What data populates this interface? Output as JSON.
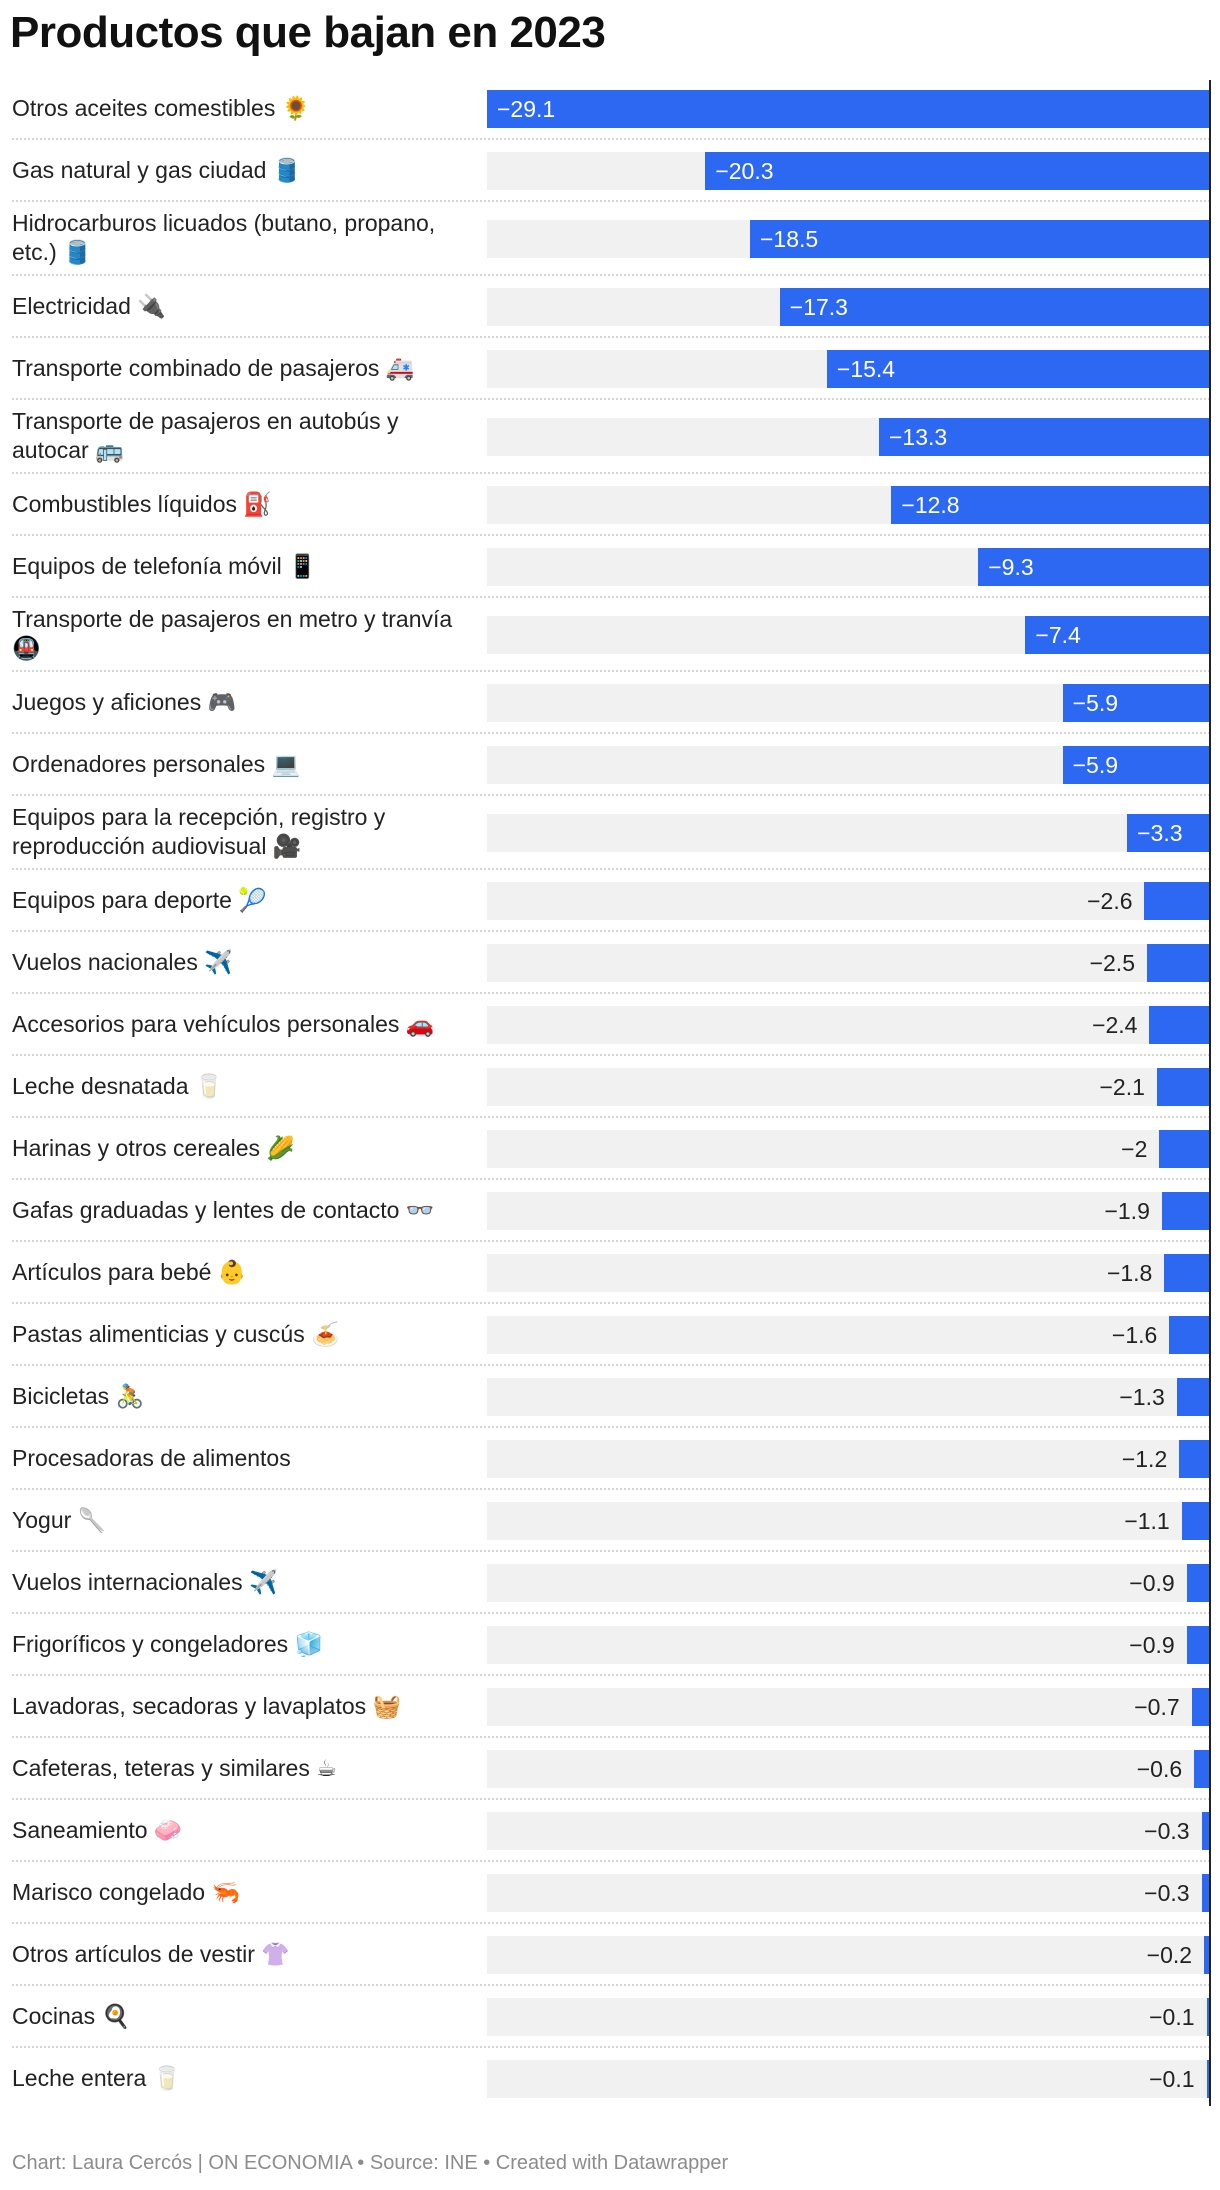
{
  "title": "Productos que bajan en 2023",
  "footer": "Chart: Laura Cercós | ON ECONOMIA • Source: INE • Created with Datawrapper",
  "colors": {
    "bar": "#2c68f2",
    "track": "#f1f1f1",
    "axis": "#222222"
  },
  "chart_data": {
    "type": "bar",
    "orientation": "horizontal",
    "title": "Productos que bajan en 2023",
    "xlim": [
      -29.1,
      0
    ],
    "categories": [
      {
        "label": "Otros aceites comestibles 🌻",
        "value": -29.1,
        "value_label": "−29.1"
      },
      {
        "label": "Gas natural y gas ciudad 🛢️",
        "value": -20.3,
        "value_label": "−20.3"
      },
      {
        "label": "Hidrocarburos licuados (butano, propano, etc.) 🛢️",
        "value": -18.5,
        "value_label": "−18.5"
      },
      {
        "label": "Electricidad 🔌",
        "value": -17.3,
        "value_label": "−17.3"
      },
      {
        "label": "Transporte combinado de pasajeros 🚑",
        "value": -15.4,
        "value_label": "−15.4"
      },
      {
        "label": "Transporte de pasajeros en autobús y autocar 🚌",
        "value": -13.3,
        "value_label": "−13.3"
      },
      {
        "label": "Combustibles líquidos ⛽",
        "value": -12.8,
        "value_label": "−12.8"
      },
      {
        "label": "Equipos de telefonía móvil 📱",
        "value": -9.3,
        "value_label": "−9.3"
      },
      {
        "label": "Transporte de pasajeros en metro y tranvía 🚇",
        "value": -7.4,
        "value_label": "−7.4"
      },
      {
        "label": "Juegos y aficiones 🎮",
        "value": -5.9,
        "value_label": "−5.9"
      },
      {
        "label": "Ordenadores personales 💻",
        "value": -5.9,
        "value_label": "−5.9"
      },
      {
        "label": "Equipos para la recepción, registro y reproducción audiovisual 🎥",
        "value": -3.3,
        "value_label": "−3.3"
      },
      {
        "label": "Equipos para deporte 🎾",
        "value": -2.6,
        "value_label": "−2.6"
      },
      {
        "label": "Vuelos nacionales ✈️",
        "value": -2.5,
        "value_label": "−2.5"
      },
      {
        "label": "Accesorios para vehículos personales 🚗",
        "value": -2.4,
        "value_label": "−2.4"
      },
      {
        "label": "Leche desnatada 🥛",
        "value": -2.1,
        "value_label": "−2.1"
      },
      {
        "label": "Harinas y otros cereales 🌽",
        "value": -2.0,
        "value_label": "−2"
      },
      {
        "label": "Gafas graduadas y lentes de contacto 👓",
        "value": -1.9,
        "value_label": "−1.9"
      },
      {
        "label": "Artículos para bebé 👶",
        "value": -1.8,
        "value_label": "−1.8"
      },
      {
        "label": "Pastas alimenticias y cuscús 🍝",
        "value": -1.6,
        "value_label": "−1.6"
      },
      {
        "label": "Bicicletas 🚴",
        "value": -1.3,
        "value_label": "−1.3"
      },
      {
        "label": "Procesadoras de alimentos",
        "value": -1.2,
        "value_label": "−1.2"
      },
      {
        "label": "Yogur 🥄",
        "value": -1.1,
        "value_label": "−1.1"
      },
      {
        "label": "Vuelos internacionales ✈️",
        "value": -0.9,
        "value_label": "−0.9"
      },
      {
        "label": "Frigoríficos y congeladores 🧊",
        "value": -0.9,
        "value_label": "−0.9"
      },
      {
        "label": "Lavadoras, secadoras y lavaplatos 🧺",
        "value": -0.7,
        "value_label": "−0.7"
      },
      {
        "label": "Cafeteras, teteras y similares ☕",
        "value": -0.6,
        "value_label": "−0.6"
      },
      {
        "label": "Saneamiento 🧼",
        "value": -0.3,
        "value_label": "−0.3"
      },
      {
        "label": "Marisco congelado 🦐",
        "value": -0.3,
        "value_label": "−0.3"
      },
      {
        "label": "Otros artículos de vestir 👚",
        "value": -0.2,
        "value_label": "−0.2"
      },
      {
        "label": "Cocinas 🍳",
        "value": -0.1,
        "value_label": "−0.1"
      },
      {
        "label": "Leche entera 🥛",
        "value": -0.1,
        "value_label": "−0.1"
      }
    ]
  }
}
